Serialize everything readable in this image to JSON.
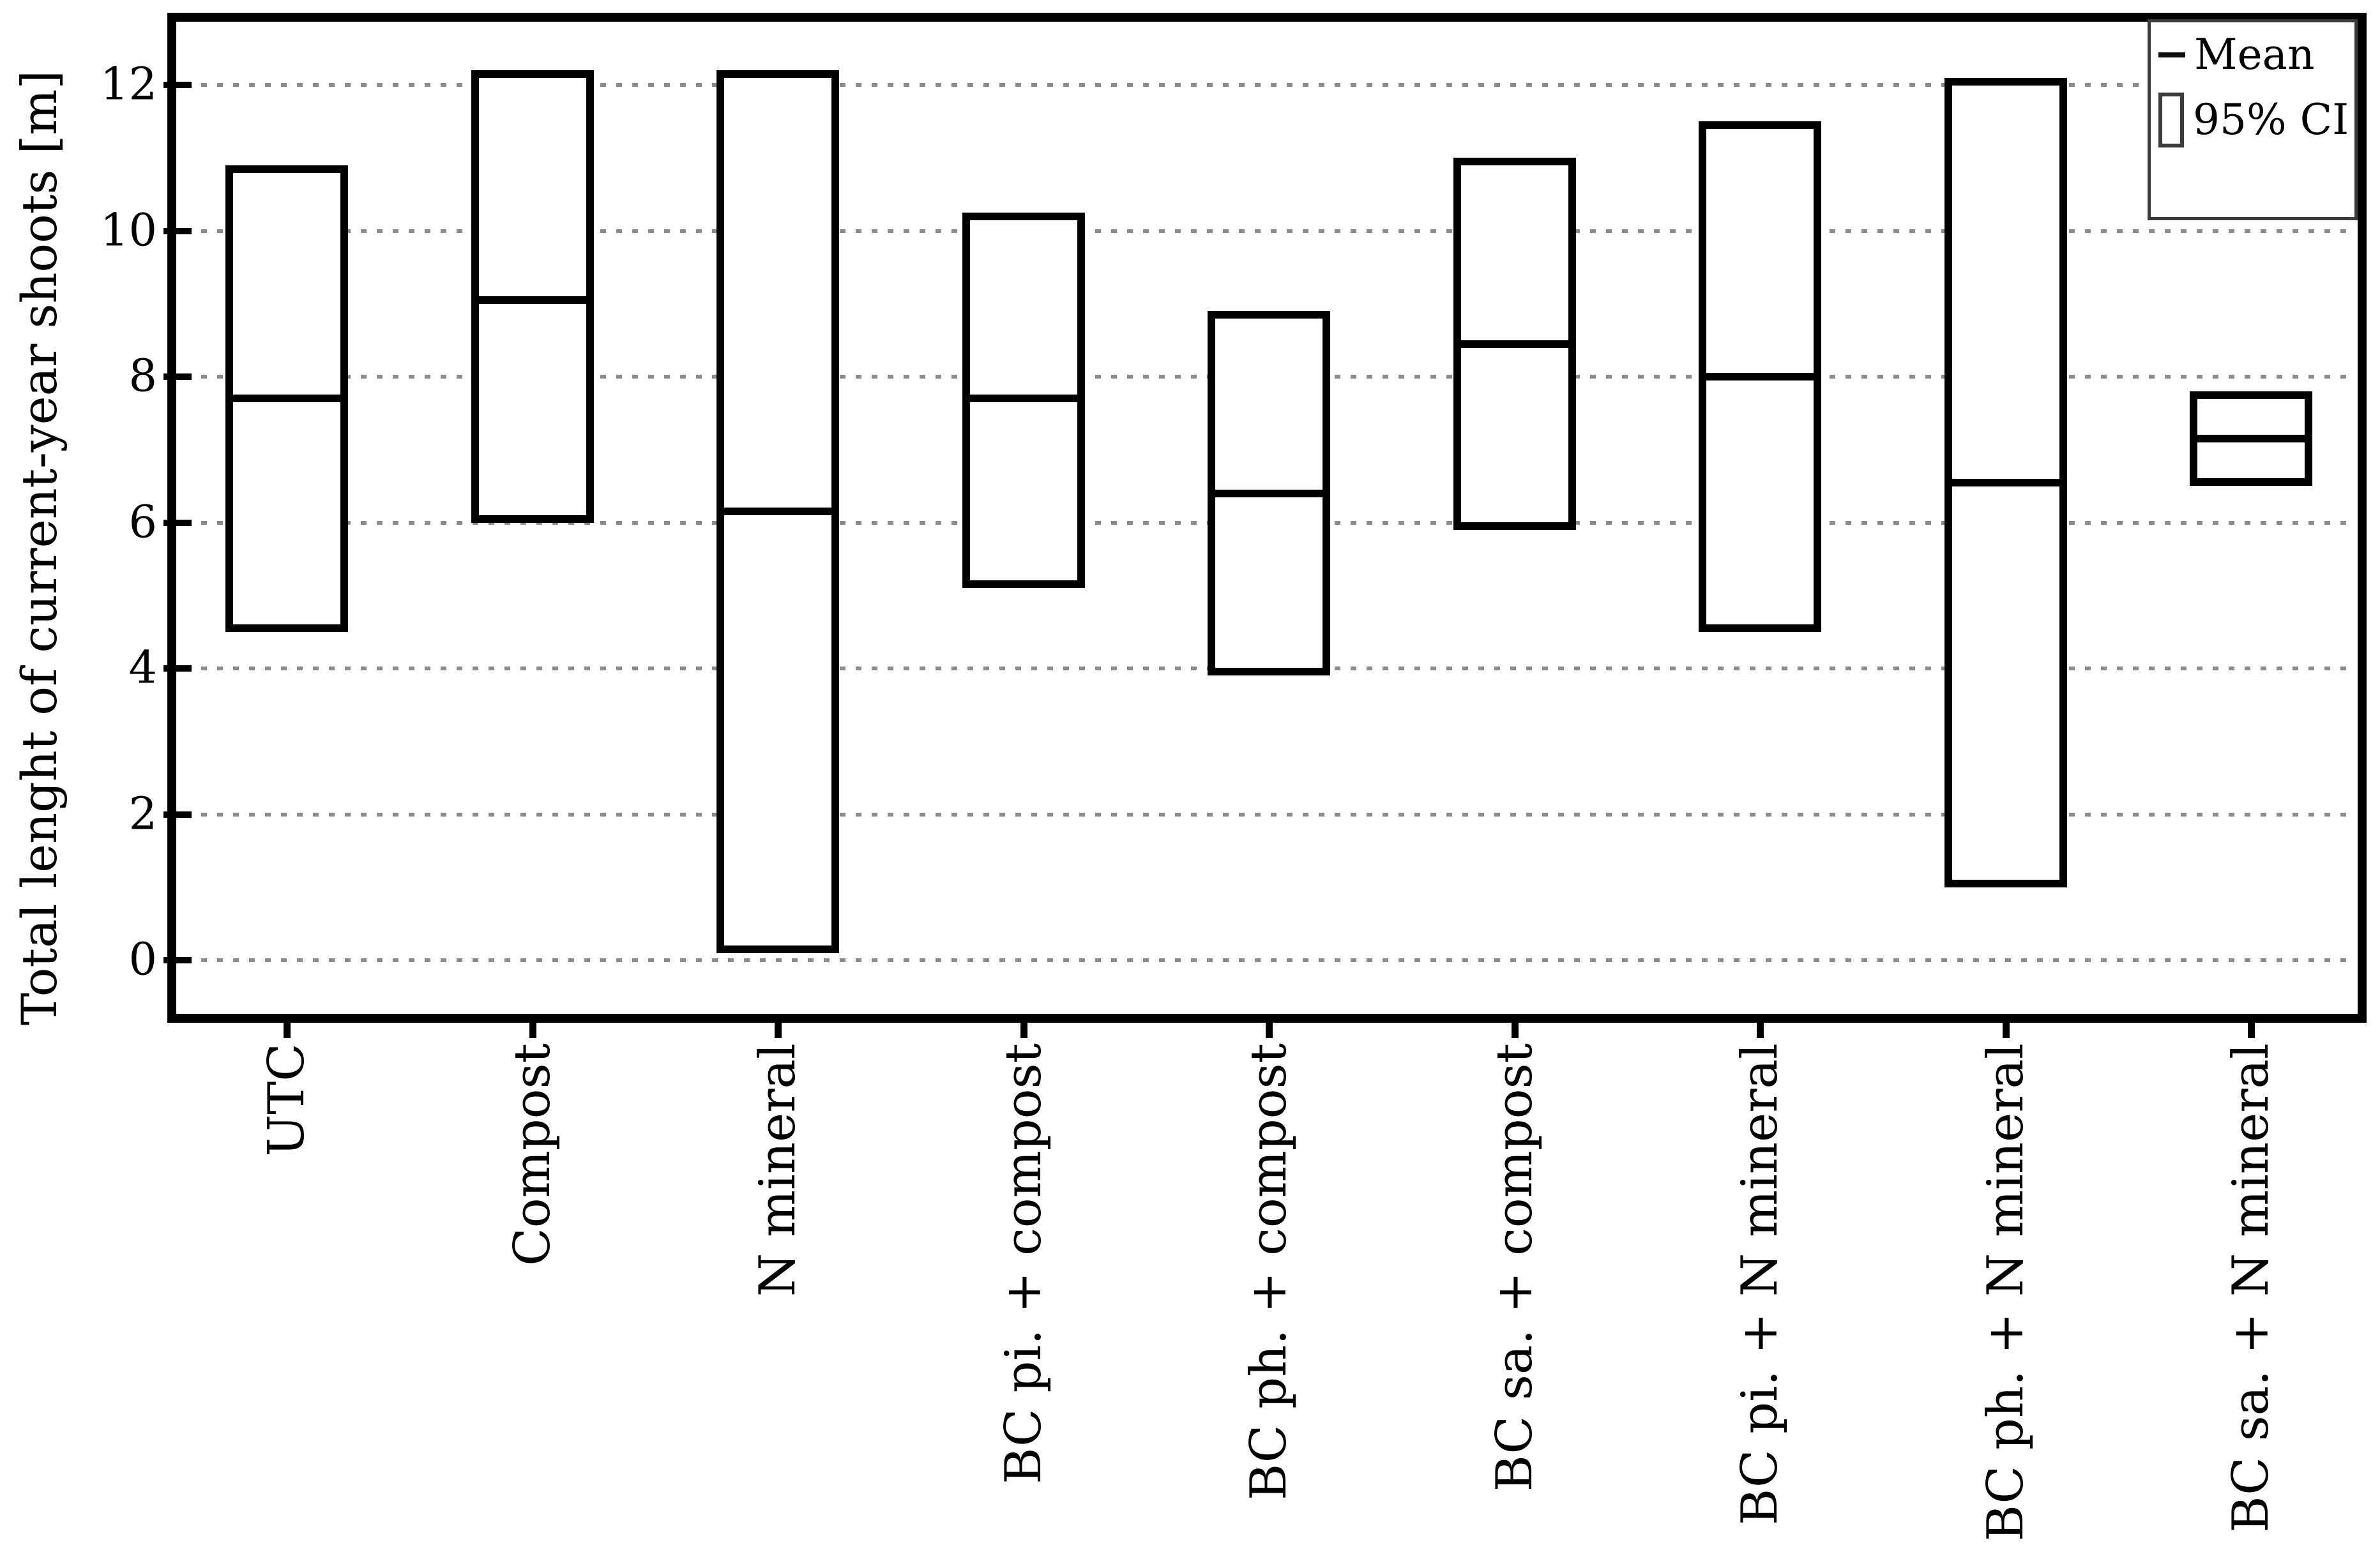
{
  "colors": {
    "background": "#ffffff",
    "box_border": "#000000",
    "mean_line": "#000000",
    "grid": "#8c8c8c",
    "text": "#000000"
  },
  "chart_data": {
    "type": "bar",
    "subtype": "mean-with-95ci-boxes",
    "title": "",
    "xlabel": "",
    "ylabel": "Total lenght of current-year shoots [m]",
    "ylim": [
      -0.4,
      12.9
    ],
    "yticks": [
      0,
      2,
      4,
      6,
      8,
      10,
      12
    ],
    "grid": "horizontal dotted at each ytick",
    "categories": [
      "UTC",
      "Compost",
      "N mineral",
      "BC pi. + compost",
      "BC ph. + compost",
      "BC sa. + compost",
      "BC pi. + N mineral",
      "BC ph. + N mineral",
      "BC sa. + N mineral"
    ],
    "points": [
      {
        "label": "UTC",
        "mean": 7.7,
        "ci_low": 4.5,
        "ci_high": 10.9
      },
      {
        "label": "Compost",
        "mean": 9.05,
        "ci_low": 6.0,
        "ci_high": 12.2
      },
      {
        "label": "N mineral",
        "mean": 6.15,
        "ci_low": 0.1,
        "ci_high": 12.2
      },
      {
        "label": "BC pi. + compost",
        "mean": 7.7,
        "ci_low": 5.1,
        "ci_high": 10.25
      },
      {
        "label": "BC ph. + compost",
        "mean": 6.4,
        "ci_low": 3.9,
        "ci_high": 8.9
      },
      {
        "label": "BC sa. + compost",
        "mean": 8.45,
        "ci_low": 5.9,
        "ci_high": 11.0
      },
      {
        "label": "BC pi. + N mineral",
        "mean": 8.0,
        "ci_low": 4.5,
        "ci_high": 11.5
      },
      {
        "label": "BC ph. + N mineral",
        "mean": 6.55,
        "ci_low": 1.0,
        "ci_high": 12.1
      },
      {
        "label": "BC sa. + N mineral",
        "mean": 7.15,
        "ci_low": 6.5,
        "ci_high": 7.8
      }
    ],
    "legend": {
      "position": "top-right",
      "entries": [
        {
          "glyph": "line",
          "label": "Mean"
        },
        {
          "glyph": "box",
          "label": "95% CI"
        }
      ]
    }
  }
}
